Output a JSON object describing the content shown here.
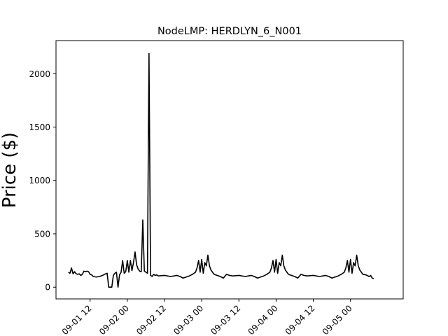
{
  "chart_data": {
    "type": "line",
    "title": "NodeLMP: HERDLYN_6_N001",
    "xlabel": "",
    "ylabel": "Price ($)",
    "ylim": [
      -110,
      2310
    ],
    "xlim": [
      "09-01 01:00",
      "09-05 17:00"
    ],
    "yticks": [
      0,
      500,
      1000,
      1500,
      2000
    ],
    "ytick_labels": [
      "0",
      "500",
      "1000",
      "1500",
      "2000"
    ],
    "xticks": [
      "09-01 12:00",
      "09-02 00:00",
      "09-02 12:00",
      "09-03 00:00",
      "09-03 12:00",
      "09-04 00:00",
      "09-04 12:00",
      "09-05 00:00"
    ],
    "xtick_labels": [
      "09-01 12",
      "09-02 00",
      "09-02 12",
      "09-03 00",
      "09-03 12",
      "09-04 00",
      "09-04 12",
      "09-05 00"
    ],
    "grid": false,
    "legend": "none",
    "line_color": "#000000",
    "series": [
      {
        "points": [
          [
            "09-01 05:00",
            140
          ],
          [
            "09-01 05:30",
            130
          ],
          [
            "09-01 06:00",
            180
          ],
          [
            "09-01 06:30",
            125
          ],
          [
            "09-01 07:00",
            145
          ],
          [
            "09-01 07:30",
            125
          ],
          [
            "09-01 08:00",
            120
          ],
          [
            "09-01 08:30",
            125
          ],
          [
            "09-01 09:00",
            110
          ],
          [
            "09-01 09:30",
            120
          ],
          [
            "09-01 10:00",
            150
          ],
          [
            "09-01 10:30",
            145
          ],
          [
            "09-01 11:00",
            150
          ],
          [
            "09-01 11:30",
            145
          ],
          [
            "09-01 12:00",
            120
          ],
          [
            "09-01 12:30",
            115
          ],
          [
            "09-01 13:00",
            100
          ],
          [
            "09-01 14:00",
            95
          ],
          [
            "09-01 15:00",
            100
          ],
          [
            "09-01 16:00",
            110
          ],
          [
            "09-01 17:00",
            125
          ],
          [
            "09-01 17:30",
            130
          ],
          [
            "09-01 18:00",
            0
          ],
          [
            "09-01 18:30",
            0
          ],
          [
            "09-01 19:00",
            0
          ],
          [
            "09-01 19:30",
            110
          ],
          [
            "09-01 20:00",
            130
          ],
          [
            "09-01 20:30",
            140
          ],
          [
            "09-01 21:00",
            0
          ],
          [
            "09-01 21:30",
            115
          ],
          [
            "09-01 22:00",
            140
          ],
          [
            "09-01 22:30",
            250
          ],
          [
            "09-01 23:00",
            130
          ],
          [
            "09-01 23:30",
            145
          ],
          [
            "09-02 00:00",
            250
          ],
          [
            "09-02 00:30",
            140
          ],
          [
            "09-02 01:00",
            250
          ],
          [
            "09-02 01:30",
            155
          ],
          [
            "09-02 02:00",
            230
          ],
          [
            "09-02 02:30",
            330
          ],
          [
            "09-02 03:00",
            210
          ],
          [
            "09-02 03:30",
            170
          ],
          [
            "09-02 04:00",
            150
          ],
          [
            "09-02 04:30",
            145
          ],
          [
            "09-02 05:00",
            630
          ],
          [
            "09-02 05:30",
            150
          ],
          [
            "09-02 06:00",
            140
          ],
          [
            "09-02 06:30",
            130
          ],
          [
            "09-02 07:00",
            2190
          ],
          [
            "09-02 07:30",
            110
          ],
          [
            "09-02 08:00",
            100
          ],
          [
            "09-02 08:30",
            120
          ],
          [
            "09-02 09:00",
            110
          ],
          [
            "09-02 09:30",
            115
          ],
          [
            "09-02 10:00",
            105
          ],
          [
            "09-02 12:00",
            110
          ],
          [
            "09-02 14:00",
            100
          ],
          [
            "09-02 16:00",
            110
          ],
          [
            "09-02 17:00",
            100
          ],
          [
            "09-02 18:00",
            85
          ],
          [
            "09-02 19:00",
            95
          ],
          [
            "09-02 20:00",
            105
          ],
          [
            "09-02 21:00",
            120
          ],
          [
            "09-02 22:00",
            140
          ],
          [
            "09-02 22:30",
            180
          ],
          [
            "09-02 23:00",
            250
          ],
          [
            "09-02 23:30",
            140
          ],
          [
            "09-03 00:00",
            260
          ],
          [
            "09-03 00:30",
            130
          ],
          [
            "09-03 01:00",
            230
          ],
          [
            "09-03 01:30",
            200
          ],
          [
            "09-03 02:00",
            300
          ],
          [
            "09-03 02:30",
            200
          ],
          [
            "09-03 03:00",
            160
          ],
          [
            "09-03 03:30",
            140
          ],
          [
            "09-03 04:00",
            120
          ],
          [
            "09-03 05:00",
            110
          ],
          [
            "09-03 06:00",
            100
          ],
          [
            "09-03 07:00",
            85
          ],
          [
            "09-03 08:00",
            120
          ],
          [
            "09-03 09:00",
            110
          ],
          [
            "09-03 10:00",
            105
          ],
          [
            "09-03 12:00",
            110
          ],
          [
            "09-03 14:00",
            100
          ],
          [
            "09-03 16:00",
            110
          ],
          [
            "09-03 17:00",
            100
          ],
          [
            "09-03 18:00",
            85
          ],
          [
            "09-03 19:00",
            95
          ],
          [
            "09-03 20:00",
            105
          ],
          [
            "09-03 21:00",
            120
          ],
          [
            "09-03 22:00",
            140
          ],
          [
            "09-03 22:30",
            180
          ],
          [
            "09-03 23:00",
            250
          ],
          [
            "09-03 23:30",
            140
          ],
          [
            "09-04 00:00",
            260
          ],
          [
            "09-04 00:30",
            130
          ],
          [
            "09-04 01:00",
            230
          ],
          [
            "09-04 01:30",
            200
          ],
          [
            "09-04 02:00",
            300
          ],
          [
            "09-04 02:30",
            200
          ],
          [
            "09-04 03:00",
            160
          ],
          [
            "09-04 03:30",
            140
          ],
          [
            "09-04 04:00",
            120
          ],
          [
            "09-04 05:00",
            110
          ],
          [
            "09-04 06:00",
            100
          ],
          [
            "09-04 07:00",
            85
          ],
          [
            "09-04 08:00",
            120
          ],
          [
            "09-04 09:00",
            110
          ],
          [
            "09-04 10:00",
            105
          ],
          [
            "09-04 12:00",
            110
          ],
          [
            "09-04 14:00",
            100
          ],
          [
            "09-04 16:00",
            110
          ],
          [
            "09-04 17:00",
            100
          ],
          [
            "09-04 18:00",
            85
          ],
          [
            "09-04 19:00",
            95
          ],
          [
            "09-04 20:00",
            105
          ],
          [
            "09-04 21:00",
            120
          ],
          [
            "09-04 22:00",
            140
          ],
          [
            "09-04 22:30",
            180
          ],
          [
            "09-04 23:00",
            250
          ],
          [
            "09-04 23:30",
            140
          ],
          [
            "09-05 00:00",
            260
          ],
          [
            "09-05 00:30",
            130
          ],
          [
            "09-05 01:00",
            230
          ],
          [
            "09-05 01:30",
            200
          ],
          [
            "09-05 02:00",
            300
          ],
          [
            "09-05 02:30",
            200
          ],
          [
            "09-05 03:00",
            160
          ],
          [
            "09-05 03:30",
            140
          ],
          [
            "09-05 04:00",
            120
          ],
          [
            "09-05 05:00",
            115
          ],
          [
            "09-05 06:00",
            100
          ],
          [
            "09-05 06:30",
            110
          ],
          [
            "09-05 07:00",
            85
          ],
          [
            "09-05 07:30",
            80
          ]
        ]
      }
    ]
  }
}
